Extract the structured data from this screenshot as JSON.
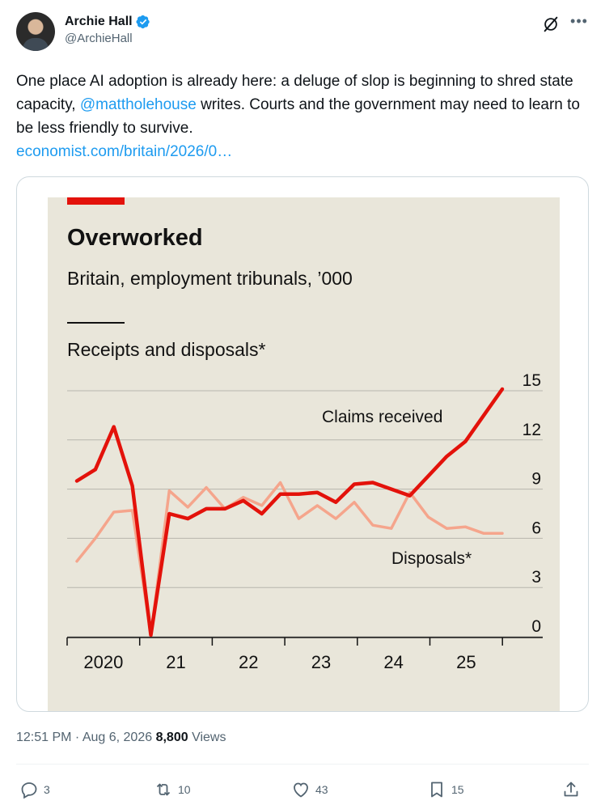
{
  "author": {
    "display_name": "Archie Hall",
    "handle": "@ArchieHall",
    "verified": true,
    "verified_color": "#1d9bf0"
  },
  "tweet": {
    "text_part1": "One place AI adoption is already here: a deluge of slop is beginning to shred state capacity, ",
    "mention": "@mattholehouse",
    "text_part2": " writes. Courts and the government may need to learn to be less friendly to survive.",
    "link": "economist.com/britain/2026/0…"
  },
  "chart_data": {
    "type": "line",
    "title": "Overworked",
    "subtitle": "Britain, employment tribunals, ’000",
    "panel_title": "Receipts and disposals*",
    "ylim": [
      0,
      15
    ],
    "yticks": [
      "15",
      "12",
      "9",
      "6",
      "3",
      "0"
    ],
    "xticks": [
      "2020",
      "21",
      "22",
      "23",
      "24",
      "25"
    ],
    "x_start": 2019.875,
    "x_end": 2026.0,
    "series": [
      {
        "name": "Claims received",
        "color": "#e3120b",
        "x": [
          2019.875,
          2020.125,
          2020.375,
          2020.625,
          2020.875,
          2021.125,
          2021.375,
          2021.625,
          2021.875,
          2022.125,
          2022.375,
          2022.625,
          2022.875,
          2023.125,
          2023.375,
          2023.625,
          2023.875,
          2024.125,
          2024.375,
          2024.625,
          2024.875,
          2025.125,
          2025.375,
          2025.625
        ],
        "values": [
          9.5,
          10.2,
          12.8,
          9.2,
          0.1,
          7.5,
          7.2,
          7.8,
          7.8,
          8.3,
          7.5,
          8.7,
          8.7,
          8.8,
          8.2,
          9.3,
          9.4,
          9.0,
          8.6,
          9.8,
          11.0,
          11.9,
          13.5,
          15.1
        ]
      },
      {
        "name": "Disposals*",
        "color": "#f5a58c",
        "x": [
          2019.875,
          2020.125,
          2020.375,
          2020.625,
          2020.875,
          2021.125,
          2021.375,
          2021.625,
          2021.875,
          2022.125,
          2022.375,
          2022.625,
          2022.875,
          2023.125,
          2023.375,
          2023.625,
          2023.875,
          2024.125,
          2024.375,
          2024.625,
          2024.875,
          2025.125,
          2025.375,
          2025.625
        ],
        "values": [
          4.6,
          6.0,
          7.6,
          7.7,
          0.1,
          8.9,
          7.9,
          9.1,
          7.8,
          8.5,
          8.0,
          9.4,
          7.2,
          8.0,
          7.2,
          8.2,
          6.8,
          6.6,
          8.8,
          7.3,
          6.6,
          6.7,
          6.3,
          6.3
        ]
      }
    ],
    "series_labels": [
      "Claims received",
      "Disposals*"
    ],
    "background_color": "#e9e6da",
    "grid": true,
    "y_axis_position": "right"
  },
  "meta": {
    "time": "12:51 PM",
    "separator": " · ",
    "date": "Aug 6, 2026",
    "views_count": "8,800",
    "views_label": " Views"
  },
  "actions": {
    "replies": "3",
    "retweets": "10",
    "likes": "43",
    "bookmarks": "15"
  }
}
